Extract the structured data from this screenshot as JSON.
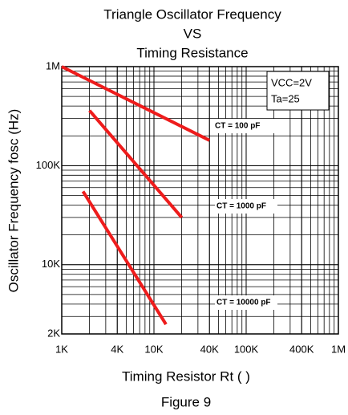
{
  "chart_data": {
    "type": "line",
    "title": [
      "Triangle Oscillator Frequency",
      "VS",
      "Timing Resistance"
    ],
    "x_label": "Timing Resistor Rt (   )",
    "y_label": "Oscillator Frequency fosc (Hz)",
    "caption": "Figure 9",
    "annotations": [
      "VCC=2V",
      "Ta=25"
    ],
    "log_x": true,
    "log_y": true,
    "grid": true,
    "xlim": [
      1000,
      1000000
    ],
    "xticks": [
      {
        "value": 1000,
        "label": "1K"
      },
      {
        "value": 4000,
        "label": "4K"
      },
      {
        "value": 10000,
        "label": "10K"
      },
      {
        "value": 40000,
        "label": "40K"
      },
      {
        "value": 100000,
        "label": "100K"
      },
      {
        "value": 400000,
        "label": "400K"
      },
      {
        "value": 1000000,
        "label": "1M"
      }
    ],
    "ylim": [
      2000,
      1000000
    ],
    "yticks": [
      {
        "value": 2000,
        "label": "2K"
      },
      {
        "value": 10000,
        "label": "10K"
      },
      {
        "value": 100000,
        "label": "100K"
      },
      {
        "value": 1000000,
        "label": "1M"
      }
    ],
    "series": [
      {
        "name": "CT = 100 pF",
        "color": "#ee1c1c",
        "x": [
          1000,
          40000
        ],
        "values": [
          1000000,
          180000
        ]
      },
      {
        "name": "CT = 1000 pF",
        "color": "#ee1c1c",
        "x": [
          2000,
          20000
        ],
        "values": [
          360000,
          30000
        ]
      },
      {
        "name": "CT = 10000 pF",
        "color": "#ee1c1c",
        "x": [
          1700,
          13500
        ],
        "values": [
          55000,
          2500
        ]
      }
    ]
  }
}
